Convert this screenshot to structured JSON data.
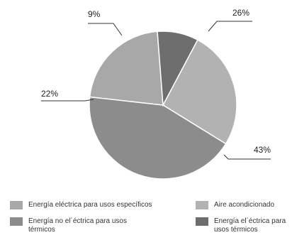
{
  "chart_data": {
    "type": "pie",
    "slices": [
      {
        "label": "Aire acondicionado",
        "value": 26,
        "display": "26%",
        "color": "#b2b2b2"
      },
      {
        "label": "Energía no el´éctrica para usos térmicos",
        "value": 43,
        "display": "43%",
        "color": "#8c8c8c"
      },
      {
        "label": "Energía eléctrica para usos específicos",
        "value": 22,
        "display": "22%",
        "color": "#a8a8a8"
      },
      {
        "label": "Energía el´éctrica para usos térmicos",
        "value": 9,
        "display": "9%",
        "color": "#6e6e6e"
      }
    ],
    "legend_placement": "bottom"
  },
  "legend": [
    {
      "text": "Energía eléctrica para usos específicos",
      "color": "#a8a8a8"
    },
    {
      "text": "Aire acondicionado",
      "color": "#b2b2b2"
    },
    {
      "text": "Energía no el´éctrica para usos térmicos",
      "color": "#8c8c8c"
    },
    {
      "text": "Energía el´éctrica para usos térmicos",
      "color": "#6e6e6e"
    }
  ]
}
